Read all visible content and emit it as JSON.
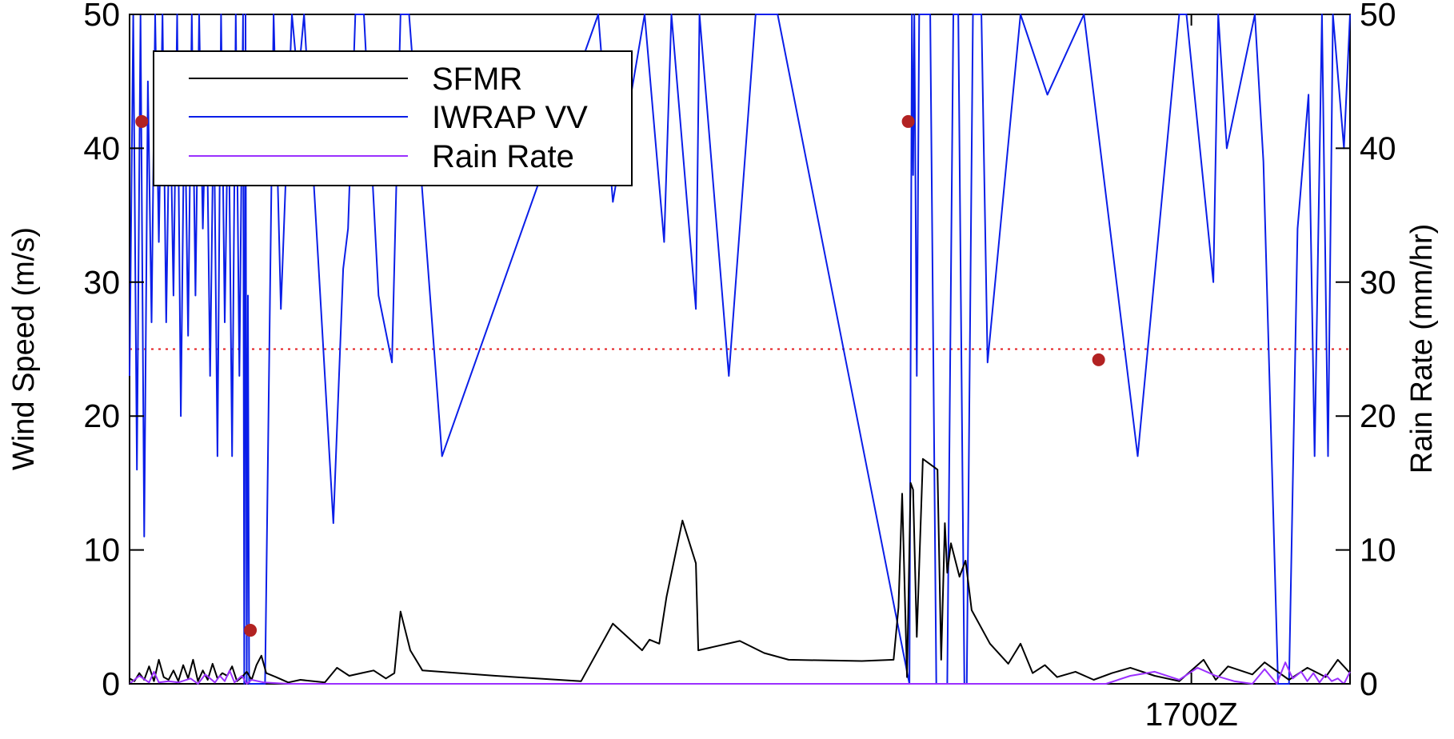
{
  "chart_data": {
    "type": "line",
    "title": "",
    "xlabel": "",
    "ylabel": "Wind Speed (m/s)",
    "y2label": "Rain Rate (mm/hr)",
    "ylim": [
      0,
      50
    ],
    "y2lim": [
      0,
      50
    ],
    "yticks": [
      0,
      10,
      20,
      30,
      40,
      50
    ],
    "y2ticks": [
      0,
      10,
      20,
      30,
      40,
      50
    ],
    "xlim": [
      0,
      100
    ],
    "xtick_labels": [
      {
        "x": 87.0,
        "label": "1700Z"
      }
    ],
    "reference_line": {
      "y": 25,
      "color": "#e31a1c",
      "style": "dotted"
    },
    "grid": false,
    "legend_position": "top-left",
    "legend": [
      "SFMR",
      "IWRAP VV",
      "Rain Rate"
    ],
    "series": [
      {
        "name": "IWRAP VV",
        "axis": "left",
        "color": "#0a1ee8",
        "x": [
          0,
          0.3,
          0.6,
          0.9,
          1.2,
          1.5,
          1.8,
          2.1,
          2.4,
          2.7,
          3.0,
          3.3,
          3.6,
          3.9,
          4.2,
          4.5,
          4.8,
          5.1,
          5.4,
          5.7,
          6.0,
          6.3,
          6.6,
          6.9,
          7.2,
          7.5,
          7.8,
          8.1,
          8.4,
          8.7,
          9.0,
          9.3,
          9.4,
          9.5,
          9.6,
          9.7,
          9.8,
          10.0,
          11.1,
          11.8,
          12.4,
          13.3,
          13.8,
          14.3,
          16.7,
          17.5,
          17.9,
          18.5,
          19.2,
          20.4,
          21.5,
          22.2,
          22.9,
          25.6,
          38.4,
          39.6,
          42.2,
          43.8,
          44.4,
          46.4,
          46.7,
          49.1,
          51.3,
          52.2,
          53.1,
          63.9,
          64.1,
          64.2,
          64.3,
          64.5,
          64.7,
          64.9,
          65.2,
          65.6,
          66.1,
          67.0,
          67.5,
          67.9,
          68.4,
          68.6,
          69.1,
          69.8,
          70.3,
          73.0,
          75.2,
          78.2,
          82.6,
          86.0,
          86.6,
          88.8,
          89.2,
          89.9,
          92.2,
          92.9,
          94.1,
          95.0,
          95.7,
          96.6,
          97.1,
          97.7,
          98.2,
          98.6,
          99.5,
          100
        ],
        "y": [
          23,
          50,
          16,
          50,
          11,
          45,
          27,
          50,
          33,
          50,
          27,
          45,
          29,
          50,
          20,
          45,
          26,
          50,
          29,
          50,
          34,
          45,
          23,
          44,
          17,
          50,
          27,
          45,
          17,
          50,
          23,
          50,
          0,
          50,
          0,
          29,
          0,
          0,
          0,
          50,
          28,
          50,
          45,
          50,
          12,
          31,
          34,
          50,
          50,
          29,
          24,
          50,
          50,
          17,
          50,
          36,
          50,
          33,
          50,
          28,
          50,
          23,
          50,
          50,
          50,
          0,
          50,
          38,
          50,
          23,
          50,
          50,
          50,
          50,
          0,
          0,
          50,
          50,
          0,
          0,
          50,
          50,
          24,
          50,
          44,
          50,
          17,
          50,
          50,
          30,
          50,
          40,
          50,
          39,
          0,
          0,
          34,
          44,
          17,
          50,
          17,
          50,
          40,
          50
        ]
      },
      {
        "name": "SFMR",
        "axis": "left",
        "color": "#000000",
        "x": [
          0,
          0.4,
          0.8,
          1.2,
          1.6,
          2.0,
          2.4,
          2.8,
          3.2,
          3.6,
          4.0,
          4.4,
          4.8,
          5.2,
          5.6,
          6.0,
          6.4,
          6.8,
          7.2,
          7.6,
          8.0,
          8.4,
          8.8,
          9.2,
          9.6,
          10.0,
          10.4,
          10.8,
          11.2,
          12.0,
          13.0,
          14.0,
          16.0,
          17.0,
          18.0,
          19.0,
          20.0,
          21.0,
          21.7,
          22.2,
          23.0,
          24.0,
          30.0,
          37.0,
          39.6,
          42.0,
          42.6,
          43.4,
          44.0,
          45.3,
          46.4,
          46.6,
          50.0,
          52.0,
          54.0,
          60.0,
          62.6,
          63.0,
          63.3,
          63.7,
          64.0,
          64.2,
          64.5,
          65.0,
          66.2,
          66.5,
          66.8,
          67.0,
          67.3,
          68.0,
          68.5,
          69.0,
          70.5,
          72.0,
          73.0,
          74.0,
          75.0,
          76.0,
          77.5,
          79.0,
          80.5,
          82.0,
          84.0,
          86.0,
          88.0,
          89.0,
          90.0,
          92.0,
          93.0,
          95.0,
          96.5,
          98.0,
          99.0,
          100
        ],
        "y": [
          0.4,
          0.2,
          0.8,
          0.3,
          1.3,
          0.2,
          1.8,
          0.5,
          0.3,
          1.0,
          0.2,
          1.4,
          0.4,
          1.8,
          0.2,
          1.0,
          0.3,
          1.5,
          0.4,
          0.8,
          0.6,
          1.3,
          0.2,
          0.5,
          0.9,
          0.3,
          1.4,
          2.1,
          0.8,
          0.5,
          0.1,
          0.3,
          0.1,
          1.2,
          0.6,
          0.8,
          1.0,
          0.4,
          0.8,
          5.4,
          2.5,
          1.0,
          0.6,
          0.2,
          4.5,
          2.5,
          3.3,
          3.0,
          6.5,
          12.2,
          9.0,
          2.5,
          3.2,
          2.3,
          1.8,
          1.7,
          1.8,
          5.7,
          14.2,
          0.5,
          15.0,
          14.5,
          3.5,
          16.8,
          16.0,
          1.8,
          12.0,
          8.3,
          10.5,
          8.0,
          9.2,
          5.5,
          3.0,
          1.5,
          3.0,
          0.8,
          1.4,
          0.5,
          0.9,
          0.3,
          0.8,
          1.2,
          0.6,
          0.2,
          1.8,
          0.3,
          1.3,
          0.7,
          1.6,
          0.3,
          1.2,
          0.5,
          1.8,
          0.8
        ]
      },
      {
        "name": "Rain Rate",
        "axis": "right",
        "color": "#9b30ff",
        "x": [
          0,
          0.8,
          1.6,
          2.0,
          2.4,
          3.2,
          4.0,
          5.0,
          5.6,
          6.2,
          7.0,
          7.4,
          7.8,
          8.2,
          8.6,
          9.2,
          9.6,
          10.0,
          11.0,
          13.0,
          14.0,
          15.4,
          16.0,
          17.0,
          18.0,
          19.0,
          62.0,
          64.0,
          66.0,
          68.0,
          70.0,
          71.0,
          75.0,
          76.5,
          78.0,
          80.0,
          82.0,
          84.0,
          86.0,
          87.5,
          89.0,
          90.5,
          92.0,
          93.0,
          94.0,
          94.7,
          95.3,
          96.0,
          96.5,
          97.0,
          97.5,
          98.0,
          98.5,
          99.0,
          99.5,
          100
        ],
        "y": [
          0,
          0.6,
          0.1,
          0.9,
          0.1,
          0.2,
          0.1,
          0.4,
          0.0,
          0.7,
          0.1,
          0.6,
          0.2,
          1.0,
          0.1,
          0.6,
          0.0,
          0.3,
          0.1,
          0.0,
          0.0,
          0.0,
          0.0,
          0.0,
          0.0,
          0.0,
          0.0,
          0.0,
          0.0,
          0.0,
          0.0,
          0.0,
          0.0,
          0.0,
          0.0,
          0.0,
          0.6,
          0.9,
          0.3,
          1.2,
          0.6,
          0.2,
          0.0,
          1.1,
          0.0,
          1.6,
          0.4,
          0.9,
          0.2,
          0.8,
          0.1,
          0.7,
          0.2,
          0.4,
          0.0,
          0.9
        ]
      }
    ],
    "markers": {
      "color": "#b22222",
      "axis": "left",
      "points": [
        {
          "x": 1.0,
          "y": 42.0
        },
        {
          "x": 9.9,
          "y": 4.0
        },
        {
          "x": 63.8,
          "y": 42.0
        },
        {
          "x": 79.4,
          "y": 24.2
        }
      ]
    }
  }
}
